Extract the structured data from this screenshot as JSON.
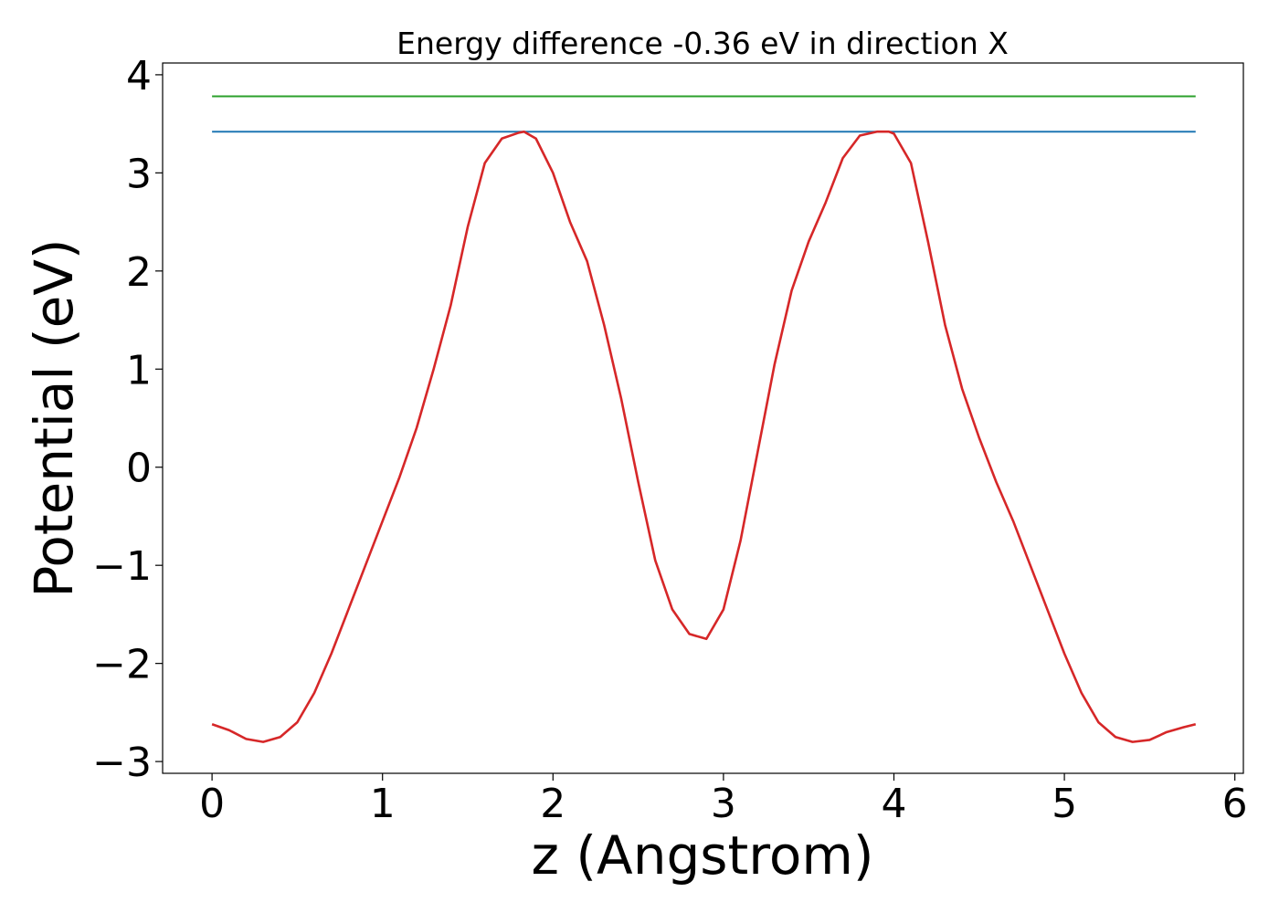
{
  "chart_data": {
    "type": "line",
    "title": "Energy difference -0.36 eV in direction X",
    "xlabel": "z (Angstrom)",
    "ylabel": "Potential (eV)",
    "xlim": [
      -0.29,
      6.05
    ],
    "ylim": [
      -3.12,
      4.12
    ],
    "xticks": [
      0,
      1,
      2,
      3,
      4,
      5,
      6
    ],
    "xtick_labels": [
      "0",
      "1",
      "2",
      "3",
      "4",
      "5",
      "6"
    ],
    "yticks": [
      -3,
      -2,
      -1,
      0,
      1,
      2,
      3,
      4
    ],
    "ytick_labels": [
      "−3",
      "−2",
      "−1",
      "0",
      "1",
      "2",
      "3",
      "4"
    ],
    "grid": false,
    "series": [
      {
        "color": "#2ca02c",
        "x": [
          0,
          5.77
        ],
        "y": [
          3.78,
          3.78
        ]
      },
      {
        "color": "#1f77b4",
        "x": [
          0,
          5.77
        ],
        "y": [
          3.42,
          3.42
        ]
      },
      {
        "color": "#d62728",
        "x": [
          0,
          0.1,
          0.2,
          0.3,
          0.4,
          0.5,
          0.6,
          0.7,
          0.8,
          0.9,
          1.0,
          1.1,
          1.2,
          1.3,
          1.4,
          1.5,
          1.6,
          1.7,
          1.8,
          1.83,
          1.9,
          2.0,
          2.1,
          2.2,
          2.3,
          2.4,
          2.5,
          2.6,
          2.7,
          2.8,
          2.9,
          3.0,
          3.1,
          3.2,
          3.3,
          3.4,
          3.5,
          3.6,
          3.7,
          3.8,
          3.9,
          3.97,
          4.0,
          4.1,
          4.2,
          4.3,
          4.4,
          4.5,
          4.6,
          4.7,
          4.8,
          4.9,
          5.0,
          5.1,
          5.2,
          5.3,
          5.4,
          5.5,
          5.6,
          5.7,
          5.77
        ],
        "y": [
          -2.62,
          -2.68,
          -2.77,
          -2.8,
          -2.75,
          -2.6,
          -2.3,
          -1.9,
          -1.45,
          -1.0,
          -0.55,
          -0.1,
          0.4,
          1.0,
          1.65,
          2.45,
          3.1,
          3.35,
          3.41,
          3.42,
          3.35,
          3.0,
          2.5,
          2.1,
          1.45,
          0.7,
          -0.15,
          -0.95,
          -1.45,
          -1.7,
          -1.75,
          -1.45,
          -0.75,
          0.15,
          1.05,
          1.8,
          2.3,
          2.7,
          3.15,
          3.38,
          3.42,
          3.42,
          3.4,
          3.1,
          2.3,
          1.45,
          0.8,
          0.3,
          -0.15,
          -0.55,
          -1.0,
          -1.45,
          -1.9,
          -2.3,
          -2.6,
          -2.75,
          -2.8,
          -2.78,
          -2.7,
          -2.65,
          -2.62
        ]
      }
    ]
  }
}
